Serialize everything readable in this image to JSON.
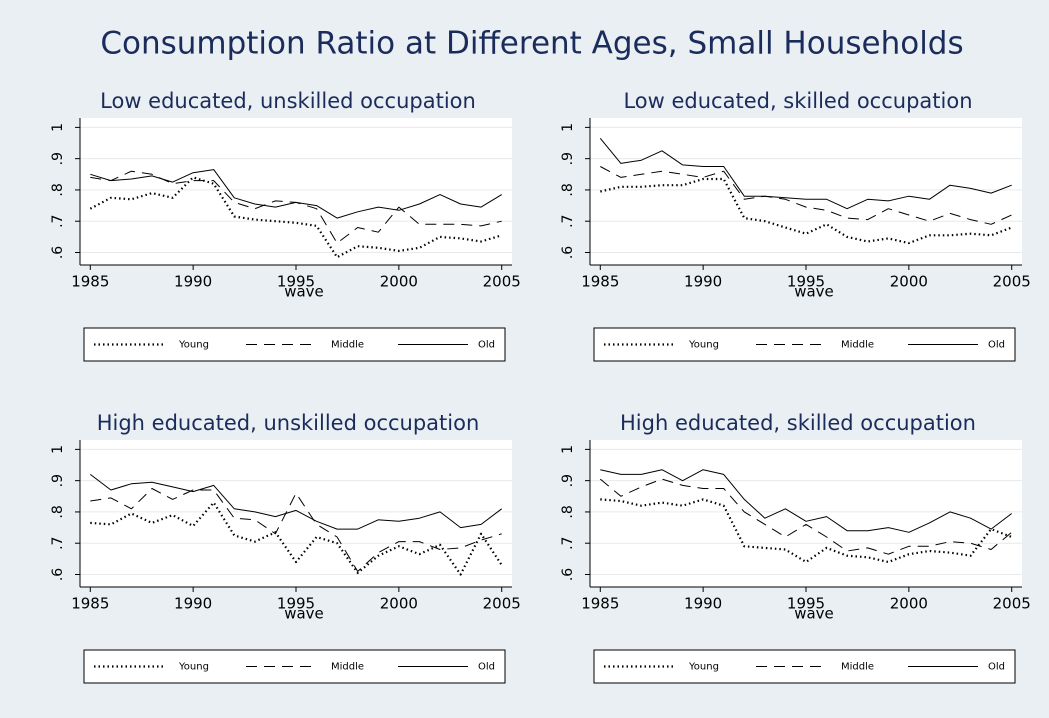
{
  "title": "Consumption Ratio at Different Ages, Small Households",
  "chart_data": [
    {
      "type": "line",
      "title": "Low educated, unskilled occupation",
      "xlabel": "wave",
      "x": [
        1985,
        1986,
        1987,
        1988,
        1989,
        1990,
        1991,
        1992,
        1993,
        1994,
        1995,
        1996,
        1997,
        1998,
        1999,
        2000,
        2001,
        2002,
        2003,
        2004,
        2005
      ],
      "xlim": [
        1984.5,
        2005.5
      ],
      "xticks": [
        1985,
        1990,
        1995,
        2000,
        2005
      ],
      "ylim": [
        0.56,
        1.03
      ],
      "yticks": [
        {
          "value": 0.6,
          "label": ".6"
        },
        {
          "value": 0.7,
          "label": ".7"
        },
        {
          "value": 0.8,
          "label": ".8"
        },
        {
          "value": 0.9,
          "label": ".9"
        },
        1
      ],
      "grid": true,
      "series": [
        {
          "name": "Young",
          "color": "#000000",
          "style": "dotted",
          "values": [
            0.74,
            0.775,
            0.77,
            0.79,
            0.775,
            0.84,
            0.82,
            0.715,
            0.705,
            0.7,
            0.695,
            0.685,
            0.585,
            0.62,
            0.615,
            0.605,
            0.615,
            0.65,
            0.645,
            0.635,
            0.655
          ]
        },
        {
          "name": "Middle",
          "color": "#000000",
          "style": "dashed",
          "values": [
            0.84,
            0.83,
            0.86,
            0.85,
            0.82,
            0.83,
            0.83,
            0.76,
            0.74,
            0.765,
            0.76,
            0.74,
            0.63,
            0.68,
            0.665,
            0.745,
            0.69,
            0.69,
            0.69,
            0.685,
            0.7
          ]
        },
        {
          "name": "Old",
          "color": "#000000",
          "style": "solid",
          "values": [
            0.85,
            0.83,
            0.835,
            0.845,
            0.825,
            0.855,
            0.865,
            0.775,
            0.755,
            0.745,
            0.76,
            0.75,
            0.71,
            0.73,
            0.745,
            0.735,
            0.755,
            0.785,
            0.755,
            0.745,
            0.785
          ]
        }
      ]
    },
    {
      "type": "line",
      "title": "Low educated, skilled occupation",
      "xlabel": "wave",
      "x": [
        1985,
        1986,
        1987,
        1988,
        1989,
        1990,
        1991,
        1992,
        1993,
        1994,
        1995,
        1996,
        1997,
        1998,
        1999,
        2000,
        2001,
        2002,
        2003,
        2004,
        2005
      ],
      "xlim": [
        1984.5,
        2005.5
      ],
      "xticks": [
        1985,
        1990,
        1995,
        2000,
        2005
      ],
      "ylim": [
        0.56,
        1.03
      ],
      "yticks": [
        {
          "value": 0.6,
          "label": ".6"
        },
        {
          "value": 0.7,
          "label": ".7"
        },
        {
          "value": 0.8,
          "label": ".8"
        },
        {
          "value": 0.9,
          "label": ".9"
        },
        1
      ],
      "grid": true,
      "series": [
        {
          "name": "Young",
          "color": "#000000",
          "style": "dotted",
          "values": [
            0.795,
            0.81,
            0.81,
            0.815,
            0.815,
            0.835,
            0.835,
            0.71,
            0.7,
            0.68,
            0.66,
            0.69,
            0.65,
            0.635,
            0.645,
            0.63,
            0.655,
            0.655,
            0.66,
            0.655,
            0.68
          ]
        },
        {
          "name": "Middle",
          "color": "#000000",
          "style": "dashed",
          "values": [
            0.875,
            0.84,
            0.85,
            0.86,
            0.85,
            0.84,
            0.86,
            0.77,
            0.78,
            0.77,
            0.745,
            0.735,
            0.71,
            0.705,
            0.74,
            0.72,
            0.7,
            0.725,
            0.705,
            0.69,
            0.72
          ]
        },
        {
          "name": "Old",
          "color": "#000000",
          "style": "solid",
          "values": [
            0.965,
            0.885,
            0.895,
            0.925,
            0.88,
            0.875,
            0.875,
            0.78,
            0.78,
            0.775,
            0.77,
            0.77,
            0.74,
            0.77,
            0.765,
            0.78,
            0.77,
            0.815,
            0.805,
            0.79,
            0.815
          ]
        }
      ]
    },
    {
      "type": "line",
      "title": "High educated, unskilled occupation",
      "xlabel": "wave",
      "x": [
        1985,
        1986,
        1987,
        1988,
        1989,
        1990,
        1991,
        1992,
        1993,
        1994,
        1995,
        1996,
        1997,
        1998,
        1999,
        2000,
        2001,
        2002,
        2003,
        2004,
        2005
      ],
      "xlim": [
        1984.5,
        2005.5
      ],
      "xticks": [
        1985,
        1990,
        1995,
        2000,
        2005
      ],
      "ylim": [
        0.56,
        1.03
      ],
      "yticks": [
        {
          "value": 0.6,
          "label": ".6"
        },
        {
          "value": 0.7,
          "label": ".7"
        },
        {
          "value": 0.8,
          "label": ".8"
        },
        {
          "value": 0.9,
          "label": ".9"
        },
        1
      ],
      "grid": true,
      "series": [
        {
          "name": "Young",
          "color": "#000000",
          "style": "dotted",
          "values": [
            0.765,
            0.76,
            0.795,
            0.765,
            0.79,
            0.755,
            0.83,
            0.725,
            0.705,
            0.735,
            0.64,
            0.72,
            0.7,
            0.605,
            0.66,
            0.69,
            0.665,
            0.695,
            0.6,
            0.73,
            0.63
          ]
        },
        {
          "name": "Middle",
          "color": "#000000",
          "style": "dashed",
          "values": [
            0.835,
            0.845,
            0.81,
            0.875,
            0.84,
            0.87,
            0.87,
            0.78,
            0.775,
            0.73,
            0.86,
            0.76,
            0.72,
            0.61,
            0.67,
            0.705,
            0.705,
            0.68,
            0.685,
            0.71,
            0.73
          ]
        },
        {
          "name": "Old",
          "color": "#000000",
          "style": "solid",
          "values": [
            0.92,
            0.87,
            0.89,
            0.895,
            0.88,
            0.865,
            0.885,
            0.81,
            0.8,
            0.785,
            0.805,
            0.77,
            0.745,
            0.745,
            0.775,
            0.77,
            0.78,
            0.8,
            0.75,
            0.76,
            0.81
          ]
        }
      ]
    },
    {
      "type": "line",
      "title": "High educated, skilled occupation",
      "xlabel": "wave",
      "x": [
        1985,
        1986,
        1987,
        1988,
        1989,
        1990,
        1991,
        1992,
        1993,
        1994,
        1995,
        1996,
        1997,
        1998,
        1999,
        2000,
        2001,
        2002,
        2003,
        2004,
        2005
      ],
      "xlim": [
        1984.5,
        2005.5
      ],
      "xticks": [
        1985,
        1990,
        1995,
        2000,
        2005
      ],
      "ylim": [
        0.56,
        1.03
      ],
      "yticks": [
        {
          "value": 0.6,
          "label": ".6"
        },
        {
          "value": 0.7,
          "label": ".7"
        },
        {
          "value": 0.8,
          "label": ".8"
        },
        {
          "value": 0.9,
          "label": ".9"
        },
        1
      ],
      "grid": true,
      "series": [
        {
          "name": "Young",
          "color": "#000000",
          "style": "dotted",
          "values": [
            0.84,
            0.835,
            0.82,
            0.83,
            0.82,
            0.84,
            0.82,
            0.69,
            0.685,
            0.68,
            0.64,
            0.685,
            0.66,
            0.655,
            0.64,
            0.665,
            0.675,
            0.67,
            0.66,
            0.745,
            0.72
          ]
        },
        {
          "name": "Middle",
          "color": "#000000",
          "style": "dashed",
          "values": [
            0.905,
            0.85,
            0.88,
            0.905,
            0.885,
            0.875,
            0.875,
            0.8,
            0.76,
            0.72,
            0.76,
            0.72,
            0.675,
            0.685,
            0.665,
            0.69,
            0.69,
            0.705,
            0.7,
            0.68,
            0.735
          ]
        },
        {
          "name": "Old",
          "color": "#000000",
          "style": "solid",
          "values": [
            0.935,
            0.92,
            0.92,
            0.935,
            0.9,
            0.935,
            0.92,
            0.84,
            0.78,
            0.81,
            0.77,
            0.785,
            0.74,
            0.74,
            0.75,
            0.735,
            0.765,
            0.8,
            0.78,
            0.745,
            0.795
          ]
        }
      ]
    }
  ]
}
